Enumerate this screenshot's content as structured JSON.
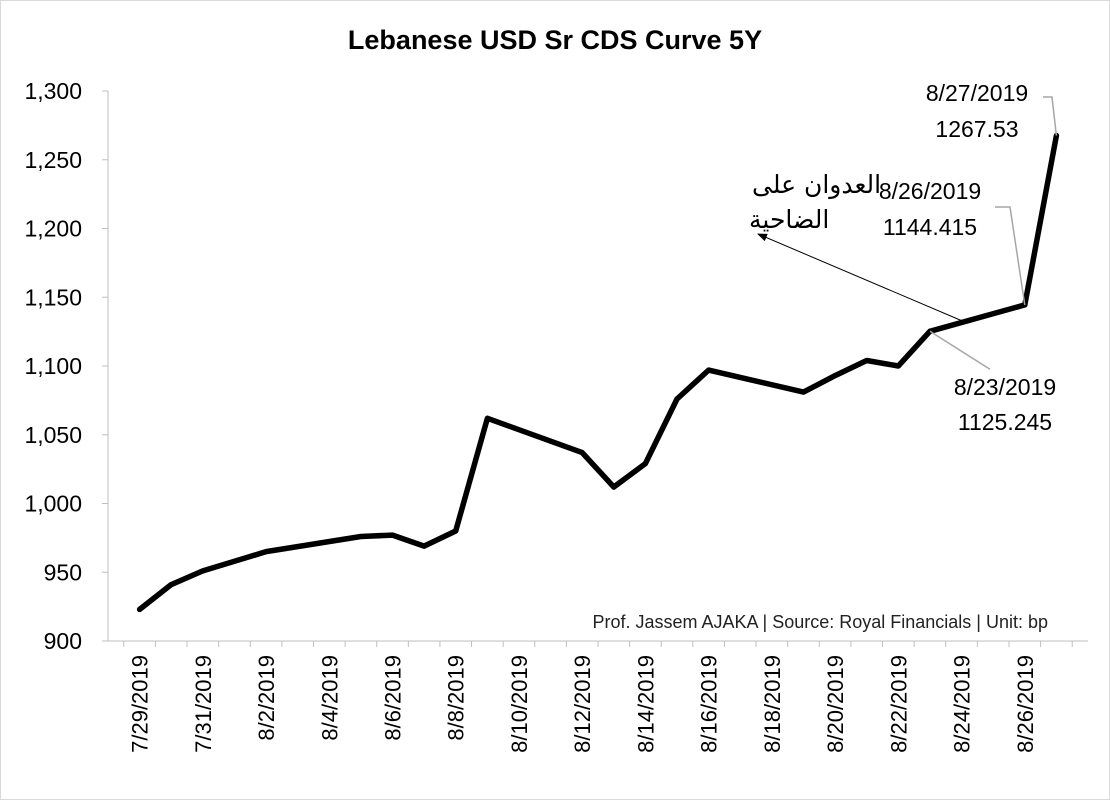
{
  "chart_data": {
    "type": "line",
    "title": "Lebanese USD Sr CDS Curve 5Y",
    "credit": "Prof. Jassem AJAKA | Source: Royal Financials | Unit: bp",
    "ylim": [
      900,
      1300
    ],
    "yticks": [
      "900",
      "950",
      "1,000",
      "1,050",
      "1,100",
      "1,150",
      "1,200",
      "1,250",
      "1,300"
    ],
    "xlim": [
      "2019-07-28",
      "2019-08-28"
    ],
    "xticks": [
      "7/29/2019",
      "7/31/2019",
      "8/2/2019",
      "8/4/2019",
      "8/6/2019",
      "8/8/2019",
      "8/10/2019",
      "8/12/2019",
      "8/14/2019",
      "8/16/2019",
      "8/18/2019",
      "8/20/2019",
      "8/22/2019",
      "8/24/2019",
      "8/26/2019"
    ],
    "grid": false,
    "legend": "none",
    "series": [
      {
        "color": "#000000",
        "points": [
          [
            "2019-07-29",
            923
          ],
          [
            "2019-07-30",
            941
          ],
          [
            "2019-07-31",
            951
          ],
          [
            "2019-08-01",
            958
          ],
          [
            "2019-08-02",
            965
          ],
          [
            "2019-08-05",
            976
          ],
          [
            "2019-08-06",
            977
          ],
          [
            "2019-08-07",
            969
          ],
          [
            "2019-08-08",
            980
          ],
          [
            "2019-08-09",
            1062
          ],
          [
            "2019-08-12",
            1037
          ],
          [
            "2019-08-13",
            1012
          ],
          [
            "2019-08-14",
            1029
          ],
          [
            "2019-08-15",
            1076
          ],
          [
            "2019-08-16",
            1097
          ],
          [
            "2019-08-19",
            1081
          ],
          [
            "2019-08-20",
            1093
          ],
          [
            "2019-08-21",
            1104
          ],
          [
            "2019-08-22",
            1100
          ],
          [
            "2019-08-23",
            1125.245
          ],
          [
            "2019-08-26",
            1144.415
          ],
          [
            "2019-08-27",
            1267.53
          ]
        ]
      }
    ],
    "annotations": [
      {
        "id": "ann-0827",
        "date_label": "8/27/2019",
        "value_label": "1267.53",
        "x": "2019-08-27",
        "y": 1267.53
      },
      {
        "id": "ann-0826",
        "date_label": "8/26/2019",
        "value_label": "1144.415",
        "x": "2019-08-26",
        "y": 1144.415
      },
      {
        "id": "ann-0823",
        "date_label": "8/23/2019",
        "value_label": "1125.245",
        "x": "2019-08-23",
        "y": 1125.245
      }
    ],
    "arabic_note": {
      "line1": "العدوان على",
      "line2": "الضاحية",
      "x": "2019-08-24",
      "y": 1133
    }
  }
}
